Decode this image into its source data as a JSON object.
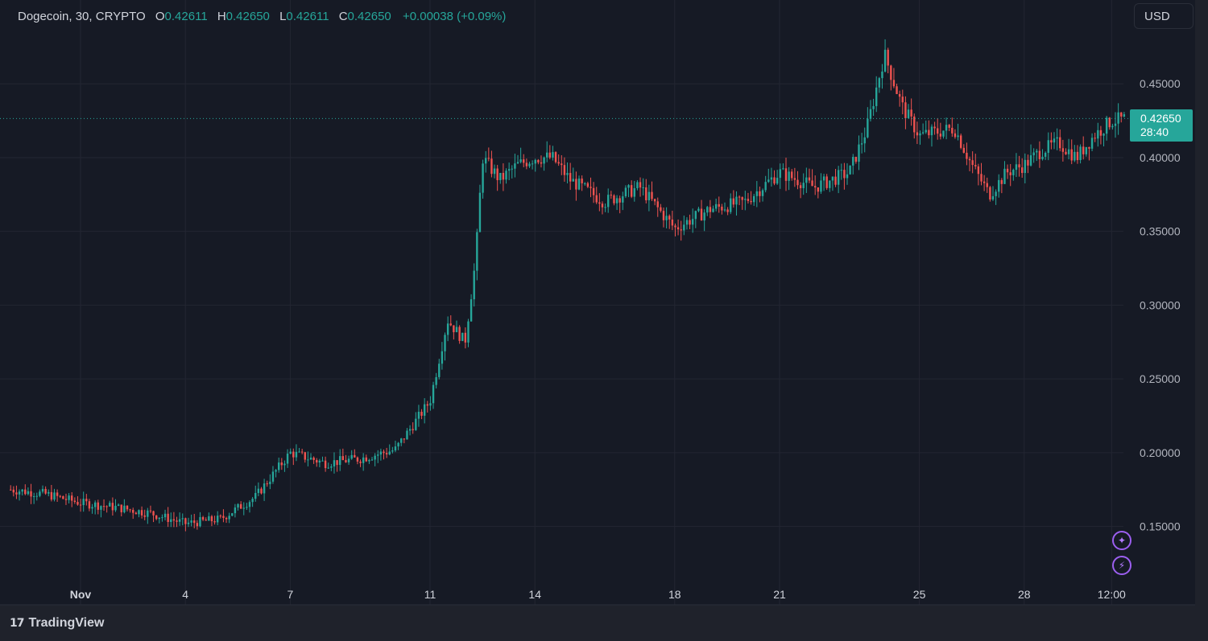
{
  "legend": {
    "symbol": "Dogecoin, 30, CRYPTO",
    "open_label": "O",
    "open": "0.42611",
    "high_label": "H",
    "high": "0.42650",
    "low_label": "L",
    "low": "0.42611",
    "close_label": "C",
    "close": "0.42650",
    "change": "+0.00038 (+0.09%)"
  },
  "toolbar": {
    "currency": "USD"
  },
  "price_label": {
    "price": "0.42650",
    "countdown": "28:40"
  },
  "brand": {
    "logo": "17",
    "name": "TradingView"
  },
  "colors": {
    "background": "#161a25",
    "up": "#26a69a",
    "down": "#ef5350",
    "grid": "#232632",
    "accent_icon": "#9c5ff0"
  },
  "icons": [
    "sparkle-icon",
    "lightning-icon"
  ],
  "chart_data": {
    "type": "candlestick",
    "symbol": "Dogecoin",
    "interval": "30",
    "ylim": [
      0.11,
      0.485
    ],
    "y_ticks": [
      "0.45000",
      "0.40000",
      "0.35000",
      "0.30000",
      "0.25000",
      "0.20000",
      "0.15000"
    ],
    "x_ticks": [
      {
        "label": "Nov",
        "t": 0
      },
      {
        "label": "4",
        "t": 3
      },
      {
        "label": "7",
        "t": 6
      },
      {
        "label": "11",
        "t": 10
      },
      {
        "label": "14",
        "t": 13
      },
      {
        "label": "18",
        "t": 17
      },
      {
        "label": "21",
        "t": 20
      },
      {
        "label": "25",
        "t": 24
      },
      {
        "label": "28",
        "t": 27
      },
      {
        "label": "12:00",
        "t": 29.5
      }
    ],
    "last_price": 0.4265,
    "grid": true,
    "price_path_days": [
      -2,
      -1,
      0,
      1,
      2,
      3,
      4,
      5,
      6,
      7,
      8,
      9,
      10,
      10.5,
      11,
      11.3,
      11.5,
      12,
      12.5,
      13,
      13.5,
      14,
      15,
      16,
      17,
      18,
      19,
      20,
      21,
      22,
      22.5,
      23,
      23.5,
      24,
      25,
      25.5,
      26,
      26.5,
      27,
      27.5,
      28,
      28.5,
      29,
      29.5,
      30
    ],
    "price_path_values": [
      0.175,
      0.172,
      0.166,
      0.163,
      0.159,
      0.152,
      0.155,
      0.17,
      0.2,
      0.193,
      0.196,
      0.202,
      0.235,
      0.29,
      0.275,
      0.33,
      0.4,
      0.385,
      0.395,
      0.4,
      0.4,
      0.385,
      0.37,
      0.38,
      0.352,
      0.365,
      0.37,
      0.39,
      0.38,
      0.39,
      0.42,
      0.47,
      0.435,
      0.415,
      0.42,
      0.395,
      0.375,
      0.39,
      0.395,
      0.405,
      0.41,
      0.4,
      0.415,
      0.425,
      0.4265
    ]
  }
}
